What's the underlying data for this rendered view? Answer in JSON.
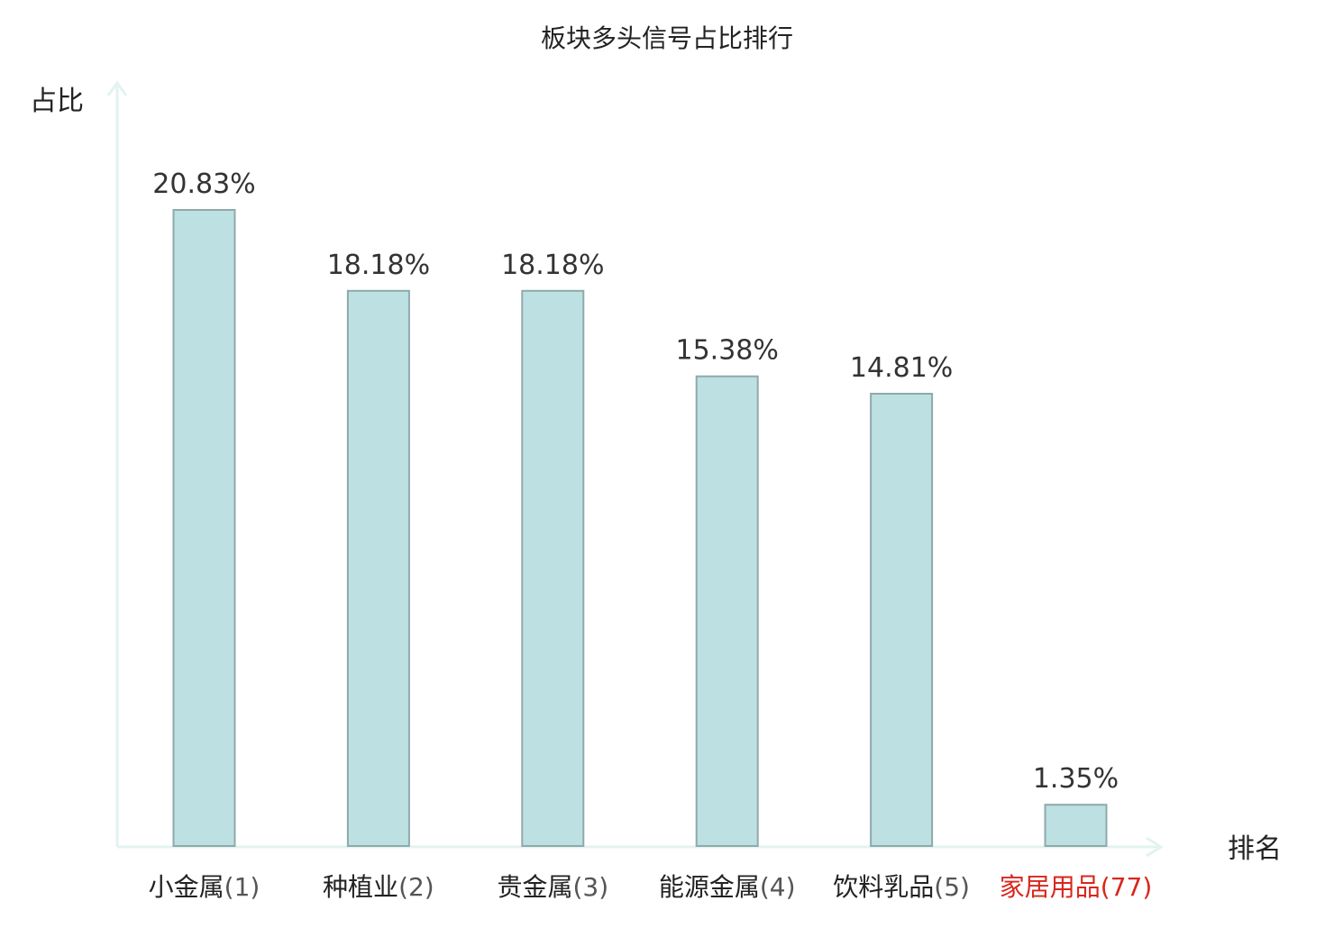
{
  "chart_data": {
    "type": "bar",
    "title": "板块多头信号占比排行",
    "ylabel": "占比",
    "xlabel": "排名",
    "ylim": [
      0,
      23
    ],
    "grid": false,
    "categories": [
      {
        "name": "小金属",
        "rank": "(1)",
        "highlight": false
      },
      {
        "name": "种植业",
        "rank": "(2)",
        "highlight": false
      },
      {
        "name": "贵金属",
        "rank": "(3)",
        "highlight": false
      },
      {
        "name": "能源金属",
        "rank": "(4)",
        "highlight": false
      },
      {
        "name": "饮料乳品",
        "rank": "(5)",
        "highlight": false
      },
      {
        "name": "家居用品",
        "rank": "(77)",
        "highlight": true
      }
    ],
    "values": [
      20.83,
      18.18,
      18.18,
      15.38,
      14.81,
      1.35
    ],
    "value_labels": [
      "20.83%",
      "18.18%",
      "18.18%",
      "15.38%",
      "14.81%",
      "1.35%"
    ],
    "colors": {
      "bar_fill": "#bde0e2",
      "bar_stroke": "#8fa9ab",
      "axis": "#e2f3f0",
      "highlight_text": "#d9261c",
      "label_text": "#222222",
      "rank_text": "#555555"
    }
  }
}
